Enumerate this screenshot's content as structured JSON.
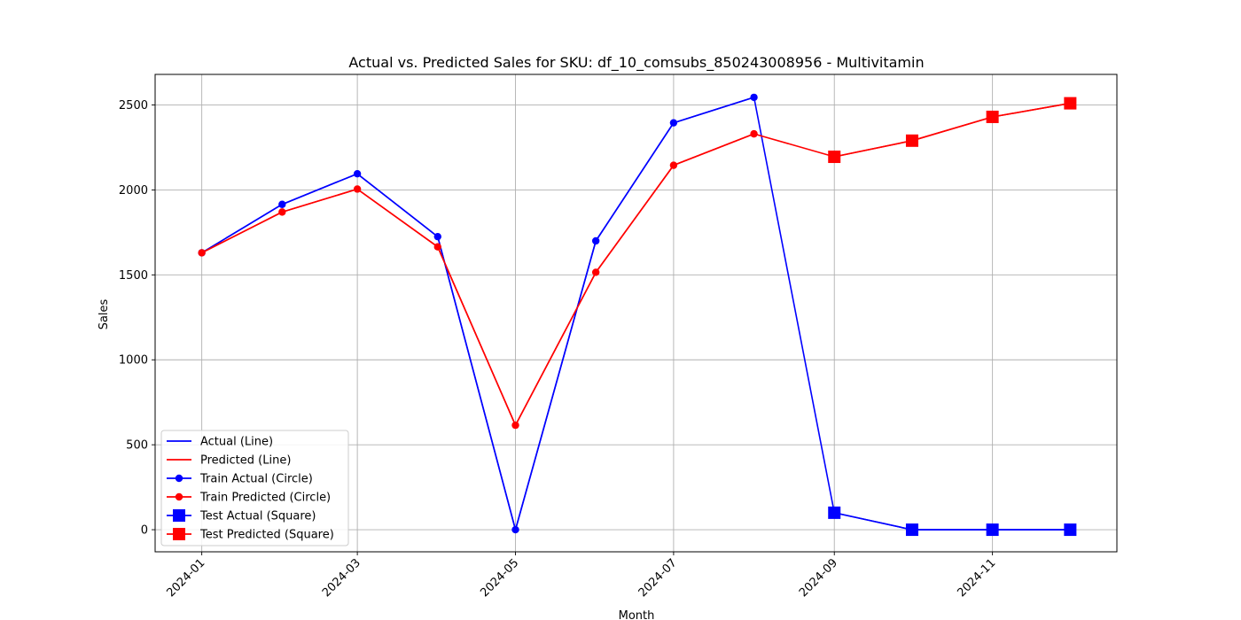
{
  "chart_data": {
    "type": "line",
    "title": "Actual vs. Predicted Sales for SKU: df_10_comsubs_850243008956 - Multivitamin",
    "xlabel": "Month",
    "ylabel": "Sales",
    "x": [
      "2024-01-01",
      "2024-02-01",
      "2024-03-01",
      "2024-04-01",
      "2024-05-01",
      "2024-06-01",
      "2024-07-01",
      "2024-08-01",
      "2024-09-01",
      "2024-10-01",
      "2024-11-01",
      "2024-12-01"
    ],
    "x_ticks": [
      "2024-01",
      "2024-03",
      "2024-05",
      "2024-07",
      "2024-09",
      "2024-11"
    ],
    "y_ticks": [
      0,
      500,
      1000,
      1500,
      2000,
      2500
    ],
    "ylim": [
      -130,
      2680
    ],
    "xlim": [
      "2023-12-14",
      "2024-12-19"
    ],
    "grid": true,
    "legend_position": "lower-left",
    "series": [
      {
        "name": "Actual (Line)",
        "color": "#0000ff",
        "marker": "none",
        "x": [
          "2024-01-01",
          "2024-02-01",
          "2024-03-01",
          "2024-04-01",
          "2024-05-01",
          "2024-06-01",
          "2024-07-01",
          "2024-08-01",
          "2024-09-01",
          "2024-10-01",
          "2024-11-01",
          "2024-12-01"
        ],
        "values": [
          1630,
          1915,
          2095,
          1725,
          0,
          1700,
          2395,
          2545,
          100,
          0,
          0,
          0
        ]
      },
      {
        "name": "Predicted (Line)",
        "color": "#ff0000",
        "marker": "none",
        "x": [
          "2024-01-01",
          "2024-02-01",
          "2024-03-01",
          "2024-04-01",
          "2024-05-01",
          "2024-06-01",
          "2024-07-01",
          "2024-08-01",
          "2024-09-01",
          "2024-10-01",
          "2024-11-01",
          "2024-12-01"
        ],
        "values": [
          1630,
          1870,
          2005,
          1665,
          615,
          1515,
          2145,
          2330,
          2195,
          2290,
          2430,
          2510
        ]
      },
      {
        "name": "Train Actual (Circle)",
        "color": "#0000ff",
        "marker": "circle",
        "x": [
          "2024-01-01",
          "2024-02-01",
          "2024-03-01",
          "2024-04-01",
          "2024-05-01",
          "2024-06-01",
          "2024-07-01",
          "2024-08-01"
        ],
        "values": [
          1630,
          1915,
          2095,
          1725,
          0,
          1700,
          2395,
          2545
        ]
      },
      {
        "name": "Train Predicted (Circle)",
        "color": "#ff0000",
        "marker": "circle",
        "x": [
          "2024-01-01",
          "2024-02-01",
          "2024-03-01",
          "2024-04-01",
          "2024-05-01",
          "2024-06-01",
          "2024-07-01",
          "2024-08-01"
        ],
        "values": [
          1630,
          1870,
          2005,
          1665,
          615,
          1515,
          2145,
          2330
        ]
      },
      {
        "name": "Test Actual (Square)",
        "color": "#0000ff",
        "marker": "square",
        "x": [
          "2024-09-01",
          "2024-10-01",
          "2024-11-01",
          "2024-12-01"
        ],
        "values": [
          100,
          0,
          0,
          0
        ]
      },
      {
        "name": "Test Predicted (Square)",
        "color": "#ff0000",
        "marker": "square",
        "x": [
          "2024-09-01",
          "2024-10-01",
          "2024-11-01",
          "2024-12-01"
        ],
        "values": [
          2195,
          2290,
          2430,
          2510
        ]
      }
    ]
  }
}
